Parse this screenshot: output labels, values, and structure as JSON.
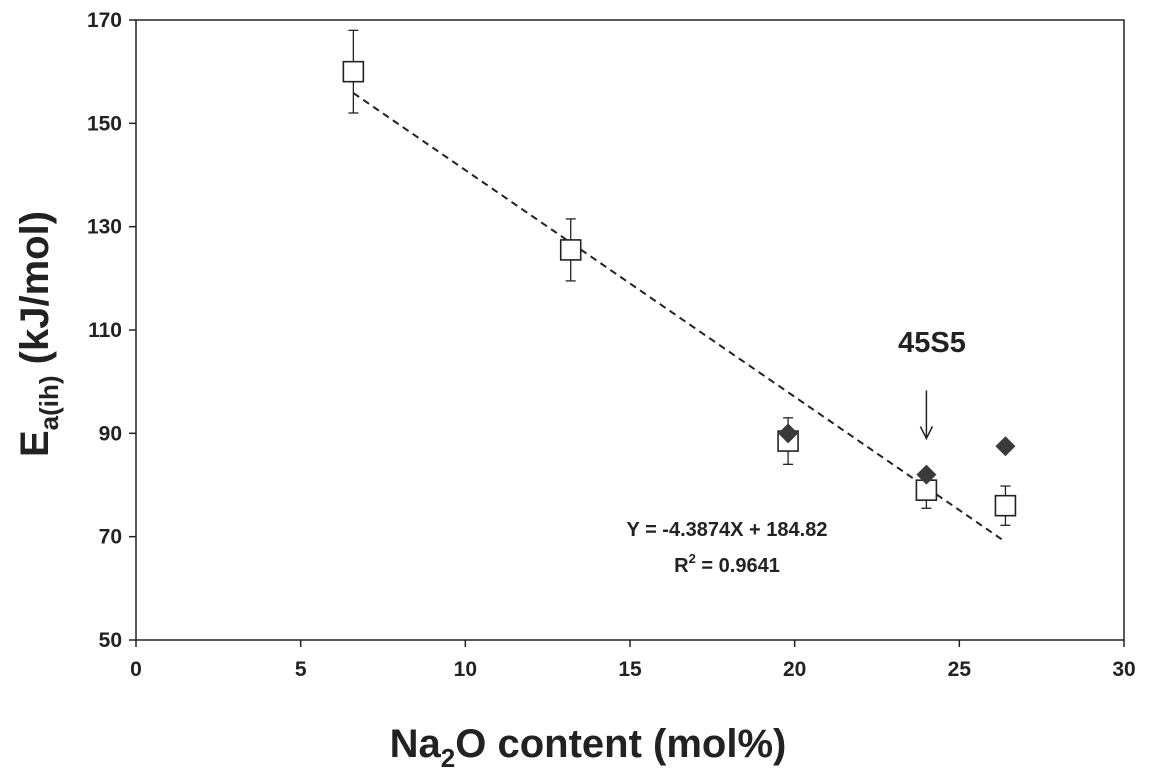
{
  "chart_data": {
    "type": "scatter",
    "xlabel": {
      "main": "Na",
      "sub": "2",
      "rest": "O content (mol%)"
    },
    "ylabel": {
      "main": "E",
      "sub": "a(ih)",
      "rest": " (kJ/mol)"
    },
    "xlim": [
      0,
      30
    ],
    "ylim": [
      50,
      170
    ],
    "xticks": [
      0,
      5,
      10,
      15,
      20,
      25,
      30
    ],
    "yticks": [
      50,
      70,
      90,
      110,
      130,
      150,
      170
    ],
    "grid": false,
    "series": [
      {
        "marker": "open-square",
        "color": "#222222",
        "points": [
          {
            "x": 6.6,
            "y": 160,
            "err": 8
          },
          {
            "x": 13.2,
            "y": 125.5,
            "err": 6
          },
          {
            "x": 19.8,
            "y": 88.5,
            "err": 4.5
          },
          {
            "x": 24.0,
            "y": 79,
            "err": 3.5
          },
          {
            "x": 26.4,
            "y": 76,
            "err": 3.8
          }
        ]
      },
      {
        "marker": "filled-diamond",
        "color": "#3a3a3a",
        "points": [
          {
            "x": 19.8,
            "y": 90
          },
          {
            "x": 24.0,
            "y": 82
          },
          {
            "x": 26.4,
            "y": 87.5
          }
        ]
      }
    ],
    "trendline": {
      "slope": -4.3874,
      "intercept": 184.82,
      "x_start": 6.6,
      "x_end": 26.4,
      "style": "dashed"
    },
    "annotations": {
      "equation": "Y = -4.3874X + 184.82",
      "r2_prefix": "R",
      "r2_sup": "2",
      "r2_suffix": " = 0.9641",
      "label_45s5": "45S5",
      "arrow_target": {
        "x": 24.0,
        "y": 89
      }
    }
  }
}
